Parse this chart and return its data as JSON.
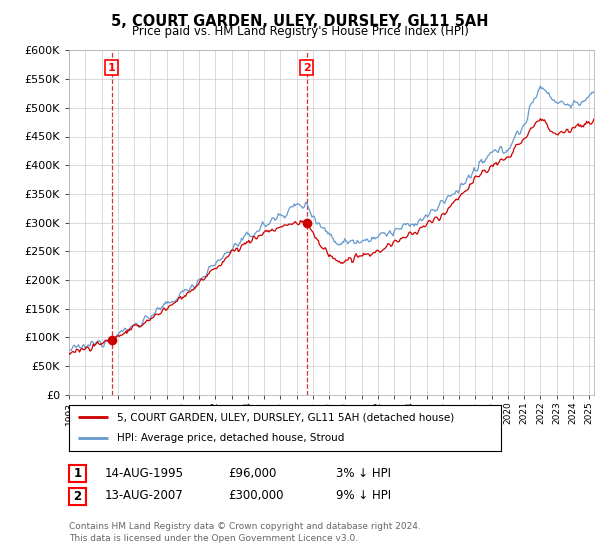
{
  "title": "5, COURT GARDEN, ULEY, DURSLEY, GL11 5AH",
  "subtitle": "Price paid vs. HM Land Registry's House Price Index (HPI)",
  "ylim": [
    0,
    600000
  ],
  "yticks": [
    0,
    50000,
    100000,
    150000,
    200000,
    250000,
    300000,
    350000,
    400000,
    450000,
    500000,
    550000,
    600000
  ],
  "xlim_start": 1993.0,
  "xlim_end": 2025.3,
  "sale1_date": 1995.617,
  "sale1_price": 96000,
  "sale1_label": "1",
  "sale2_date": 2007.617,
  "sale2_price": 300000,
  "sale2_label": "2",
  "hpi_color": "#6699cc",
  "price_color": "#cc0000",
  "legend_label1": "5, COURT GARDEN, ULEY, DURSLEY, GL11 5AH (detached house)",
  "legend_label2": "HPI: Average price, detached house, Stroud",
  "table_row1": [
    "1",
    "14-AUG-1995",
    "£96,000",
    "3% ↓ HPI"
  ],
  "table_row2": [
    "2",
    "13-AUG-2007",
    "£300,000",
    "9% ↓ HPI"
  ],
  "footer": "Contains HM Land Registry data © Crown copyright and database right 2024.\nThis data is licensed under the Open Government Licence v3.0.",
  "background_color": "#ffffff",
  "grid_color": "#cccccc"
}
